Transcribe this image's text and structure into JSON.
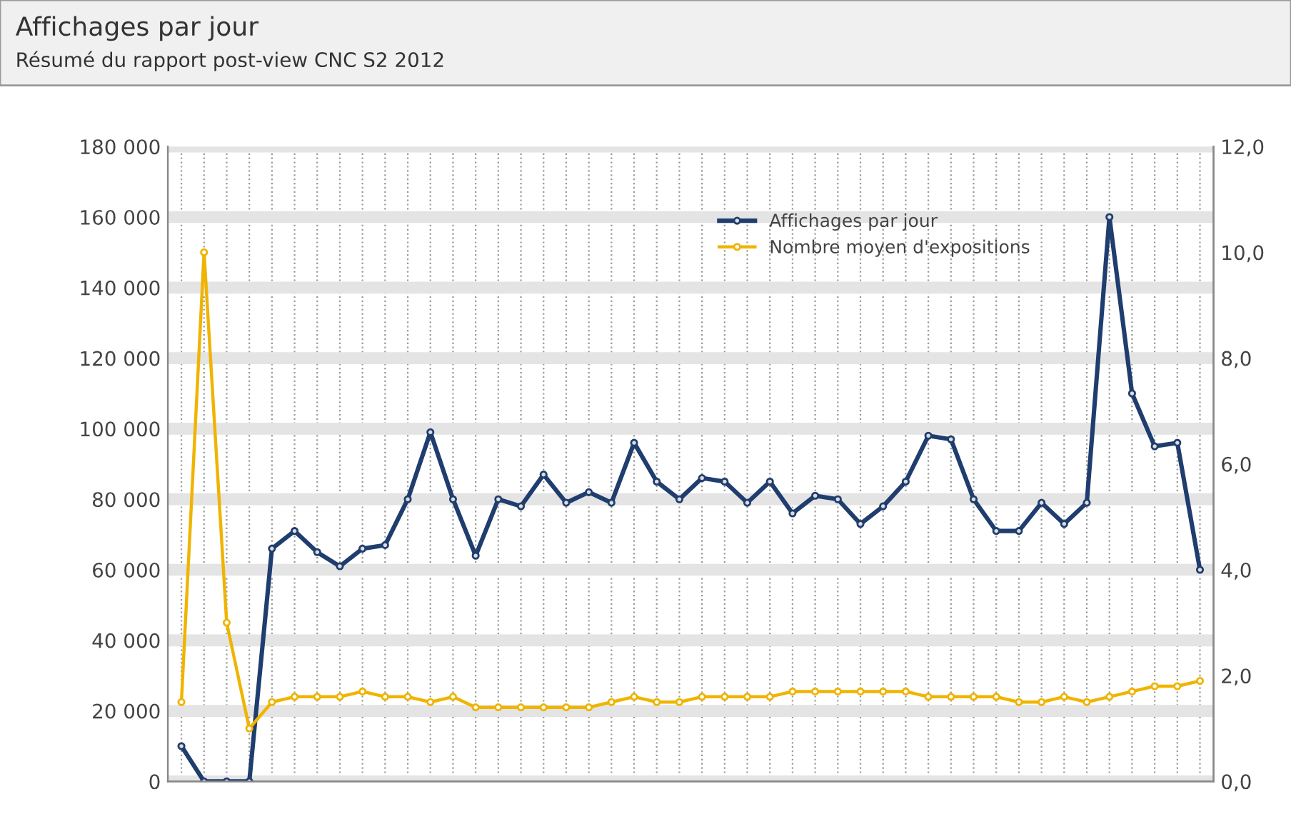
{
  "chart_data": {
    "type": "line",
    "title": "Affichages par jour",
    "subtitle": "Résumé du rapport post-view CNC S2 2012",
    "categories": [
      null,
      null,
      null,
      null,
      null,
      null,
      null,
      null,
      null,
      null,
      null,
      null,
      null,
      null,
      null,
      null,
      null,
      null,
      null,
      null,
      null,
      null,
      null,
      null,
      null,
      null,
      null,
      null,
      null,
      null,
      null,
      null,
      null,
      null,
      null,
      null,
      null,
      null,
      null,
      null,
      null,
      null,
      null,
      null,
      null,
      null
    ],
    "series": [
      {
        "name": "Affichages par jour",
        "color": "#1f3d6e",
        "values": [
          10000,
          0,
          0,
          0,
          66000,
          71000,
          65000,
          61000,
          66000,
          67000,
          80000,
          99000,
          80000,
          64000,
          80000,
          78000,
          87000,
          79000,
          82000,
          79000,
          96000,
          85000,
          80000,
          86000,
          85000,
          79000,
          85000,
          76000,
          81000,
          80000,
          73000,
          78000,
          85000,
          98000,
          97000,
          80000,
          71000,
          71000,
          79000,
          73000,
          79000,
          160000,
          110000,
          95000,
          96000,
          60000
        ]
      },
      {
        "name": "Nombre moyen d'expositions",
        "color": "#f0b400",
        "axis": "y2",
        "values": [
          1.5,
          10.0,
          3.0,
          1.0,
          1.5,
          1.6,
          1.6,
          1.6,
          1.7,
          1.6,
          1.6,
          1.5,
          1.6,
          1.4,
          1.4,
          1.4,
          1.4,
          1.4,
          1.4,
          1.5,
          1.6,
          1.5,
          1.5,
          1.6,
          1.6,
          1.6,
          1.6,
          1.7,
          1.7,
          1.7,
          1.7,
          1.7,
          1.7,
          1.6,
          1.6,
          1.6,
          1.6,
          1.5,
          1.5,
          1.6,
          1.5,
          1.6,
          1.7,
          1.8,
          1.8,
          1.9
        ]
      }
    ],
    "ylim": [
      0,
      180000
    ],
    "yticks": [
      {
        "value": 0,
        "label": "0"
      },
      {
        "value": 20000,
        "label": "20 000"
      },
      {
        "value": 40000,
        "label": "40 000"
      },
      {
        "value": 60000,
        "label": "60 000"
      },
      {
        "value": 80000,
        "label": "80 000"
      },
      {
        "value": 100000,
        "label": "100 000"
      },
      {
        "value": 120000,
        "label": "120 000"
      },
      {
        "value": 140000,
        "label": "140 000"
      },
      {
        "value": 160000,
        "label": "160 000"
      },
      {
        "value": 180000,
        "label": "180 000"
      }
    ],
    "y2lim": [
      0,
      12
    ],
    "y2ticks": [
      {
        "value": 0,
        "label": "0,0"
      },
      {
        "value": 2,
        "label": "2,0"
      },
      {
        "value": 4,
        "label": "4,0"
      },
      {
        "value": 6,
        "label": "6,0"
      },
      {
        "value": 8,
        "label": "8,0"
      },
      {
        "value": 10,
        "label": "10,0"
      },
      {
        "value": 12,
        "label": "12,0"
      }
    ],
    "grid": true,
    "legend": "top right",
    "marker": "circle",
    "line_style": "solid",
    "tick_labels": "y"
  }
}
